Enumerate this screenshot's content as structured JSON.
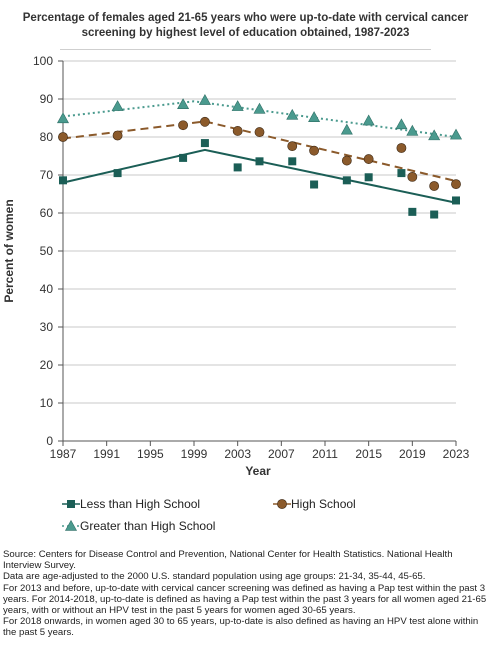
{
  "chart_data": {
    "type": "scatter",
    "title": "Percentage of females aged 21-65 years who were up-to-date with cervical cancer screening by highest level of education obtained, 1987-2023",
    "xlabel": "Year",
    "ylabel": "Percent of women",
    "xlim": [
      1987,
      2023
    ],
    "ylim": [
      0,
      100
    ],
    "xticks": [
      1987,
      1991,
      1995,
      1999,
      2003,
      2007,
      2011,
      2015,
      2019,
      2023
    ],
    "yticks": [
      0,
      10,
      20,
      30,
      40,
      50,
      60,
      70,
      80,
      90,
      100
    ],
    "grid": "horizontal",
    "legend_position": "bottom",
    "series": [
      {
        "name": "Less than High School",
        "color": "#1b5e56",
        "marker": "square",
        "trend_style": "solid",
        "x": [
          1987,
          1992,
          1998,
          2000,
          2003,
          2005,
          2008,
          2010,
          2013,
          2015,
          2018,
          2019,
          2021,
          2023
        ],
        "y": [
          68.6,
          70.5,
          74.5,
          78.4,
          72.0,
          73.6,
          73.6,
          67.5,
          68.6,
          69.4,
          70.5,
          60.3,
          59.6,
          63.3
        ],
        "trend": [
          [
            1987,
            68.0
          ],
          [
            2000,
            76.6
          ],
          [
            2023,
            62.7
          ]
        ]
      },
      {
        "name": "High School",
        "color": "#8b5a2b",
        "marker": "circle",
        "trend_style": "dashed",
        "x": [
          1987,
          1992,
          1998,
          2000,
          2003,
          2005,
          2008,
          2010,
          2013,
          2015,
          2018,
          2019,
          2021,
          2023
        ],
        "y": [
          80.0,
          80.4,
          83.1,
          84.0,
          81.6,
          81.3,
          77.6,
          76.4,
          73.8,
          74.2,
          77.1,
          69.5,
          67.1,
          67.6
        ],
        "trend": [
          [
            1987,
            79.6
          ],
          [
            2000,
            84.1
          ],
          [
            2023,
            68.4
          ]
        ]
      },
      {
        "name": "Greater than High School",
        "color": "#4a9a8e",
        "marker": "triangle",
        "trend_style": "dotted",
        "x": [
          1987,
          1992,
          1998,
          2000,
          2003,
          2005,
          2008,
          2010,
          2013,
          2015,
          2018,
          2019,
          2021,
          2023
        ],
        "y": [
          84.9,
          88.1,
          88.6,
          89.7,
          88.1,
          87.4,
          85.8,
          85.2,
          81.9,
          84.3,
          83.3,
          81.6,
          80.4,
          80.6
        ],
        "trend": [
          [
            1987,
            85.4
          ],
          [
            1999,
            89.4
          ],
          [
            2023,
            80.0
          ]
        ]
      }
    ]
  },
  "notes": [
    "Source: Centers for Disease Control and Prevention, National Center for Health Statistics. National Health Interview Survey.",
    "Data are age-adjusted to the 2000 U.S. standard population using age groups: 21-34, 35-44, 45-65.",
    "For 2013 and before, up-to-date with cervical cancer screening was defined as having a Pap test within the past 3 years. For 2014-2018, up-to-date is defined as having a Pap test within the past 3 years for all women aged 21-65 years, with or without an HPV test in the past 5 years for women aged 30-65 years.",
    "For 2018 onwards, in women aged 30 to 65 years, up-to-date is also defined as having an HPV test alone within the past 5 years."
  ]
}
